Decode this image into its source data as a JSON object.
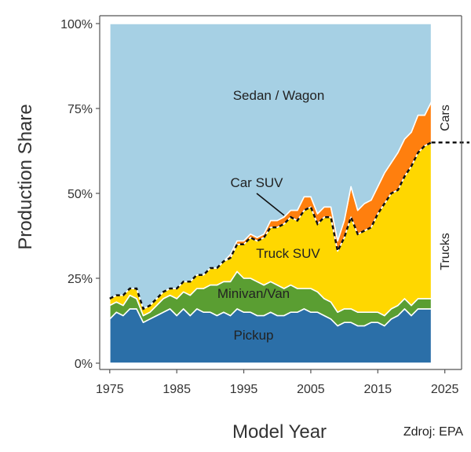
{
  "chart_data": {
    "type": "area",
    "stacked": true,
    "xlabel": "Model Year",
    "ylabel": "Production Share",
    "x_ticks": [
      1975,
      1985,
      1995,
      2005,
      2015,
      2025
    ],
    "y_ticks": [
      "0%",
      "25%",
      "50%",
      "75%",
      "100%"
    ],
    "xlim": [
      1973.5,
      2027.5
    ],
    "ylim": [
      0,
      100
    ],
    "grid": false,
    "x": [
      1975,
      1976,
      1977,
      1978,
      1979,
      1980,
      1981,
      1982,
      1983,
      1984,
      1985,
      1986,
      1987,
      1988,
      1989,
      1990,
      1991,
      1992,
      1993,
      1994,
      1995,
      1996,
      1997,
      1998,
      1999,
      2000,
      2001,
      2002,
      2003,
      2004,
      2005,
      2006,
      2007,
      2008,
      2009,
      2010,
      2011,
      2012,
      2013,
      2014,
      2015,
      2016,
      2017,
      2018,
      2019,
      2020,
      2021,
      2022,
      2023
    ],
    "series": [
      {
        "name": "Pickup",
        "color": "#2b6fa8",
        "values": [
          13,
          15,
          14,
          16,
          16,
          12,
          13,
          14,
          15,
          16,
          14,
          16,
          14,
          16,
          15,
          15,
          14,
          15,
          14,
          16,
          15,
          15,
          14,
          14,
          15,
          14,
          14,
          15,
          15,
          16,
          15,
          15,
          14,
          13,
          11,
          12,
          12,
          11,
          11,
          12,
          12,
          11,
          13,
          14,
          16,
          14,
          16,
          16,
          16
        ]
      },
      {
        "name": "Minivan/Van",
        "color": "#5a9e32",
        "values": [
          4,
          3,
          3,
          4,
          3,
          2,
          2,
          3,
          4,
          4,
          5,
          5,
          6,
          6,
          7,
          8,
          9,
          9,
          10,
          11,
          10,
          10,
          10,
          9,
          9,
          9,
          8,
          8,
          7,
          6,
          7,
          6,
          5,
          5,
          4,
          4,
          4,
          4,
          4,
          3,
          3,
          3,
          3,
          3,
          3,
          3,
          3,
          3,
          3
        ]
      },
      {
        "name": "Truck SUV",
        "color": "#ffd700",
        "values": [
          2,
          2,
          3,
          2,
          3,
          2,
          2,
          2,
          2,
          2,
          3,
          3,
          4,
          4,
          4,
          5,
          5,
          6,
          7,
          8,
          10,
          12,
          12,
          14,
          16,
          17,
          19,
          20,
          20,
          23,
          24,
          20,
          24,
          25,
          18,
          21,
          27,
          23,
          24,
          25,
          29,
          33,
          34,
          34,
          36,
          41,
          43,
          45,
          46
        ]
      },
      {
        "name": "Car SUV",
        "color": "#ff7f0e",
        "values": [
          0,
          0,
          0,
          0,
          0,
          0,
          0,
          0,
          0,
          0,
          0,
          0,
          0,
          0,
          0,
          0,
          0,
          0,
          1,
          1,
          1,
          1,
          1,
          1,
          2,
          2,
          2,
          2,
          3,
          4,
          3,
          3,
          3,
          3,
          3,
          5,
          9,
          7,
          8,
          8,
          8,
          9,
          9,
          11,
          11,
          10,
          11,
          9,
          12
        ]
      },
      {
        "name": "Sedan / Wagon",
        "color": "#a6d0e4",
        "values": [
          81,
          80,
          80,
          78,
          78,
          84,
          83,
          81,
          79,
          78,
          78,
          76,
          76,
          74,
          74,
          72,
          72,
          70,
          68,
          64,
          64,
          62,
          63,
          62,
          58,
          58,
          57,
          55,
          55,
          51,
          51,
          56,
          54,
          54,
          64,
          58,
          48,
          55,
          53,
          52,
          48,
          44,
          41,
          38,
          34,
          32,
          27,
          27,
          23
        ]
      }
    ],
    "annotations": {
      "sedan": "Sedan / Wagon",
      "car_suv": "Car SUV",
      "truck_suv": "Truck SUV",
      "minivan": "Minivan/Van",
      "pickup": "Pickup",
      "cars_bracket": "Cars",
      "trucks_bracket": "Trucks"
    }
  },
  "source_text": "Zdroj: EPA"
}
